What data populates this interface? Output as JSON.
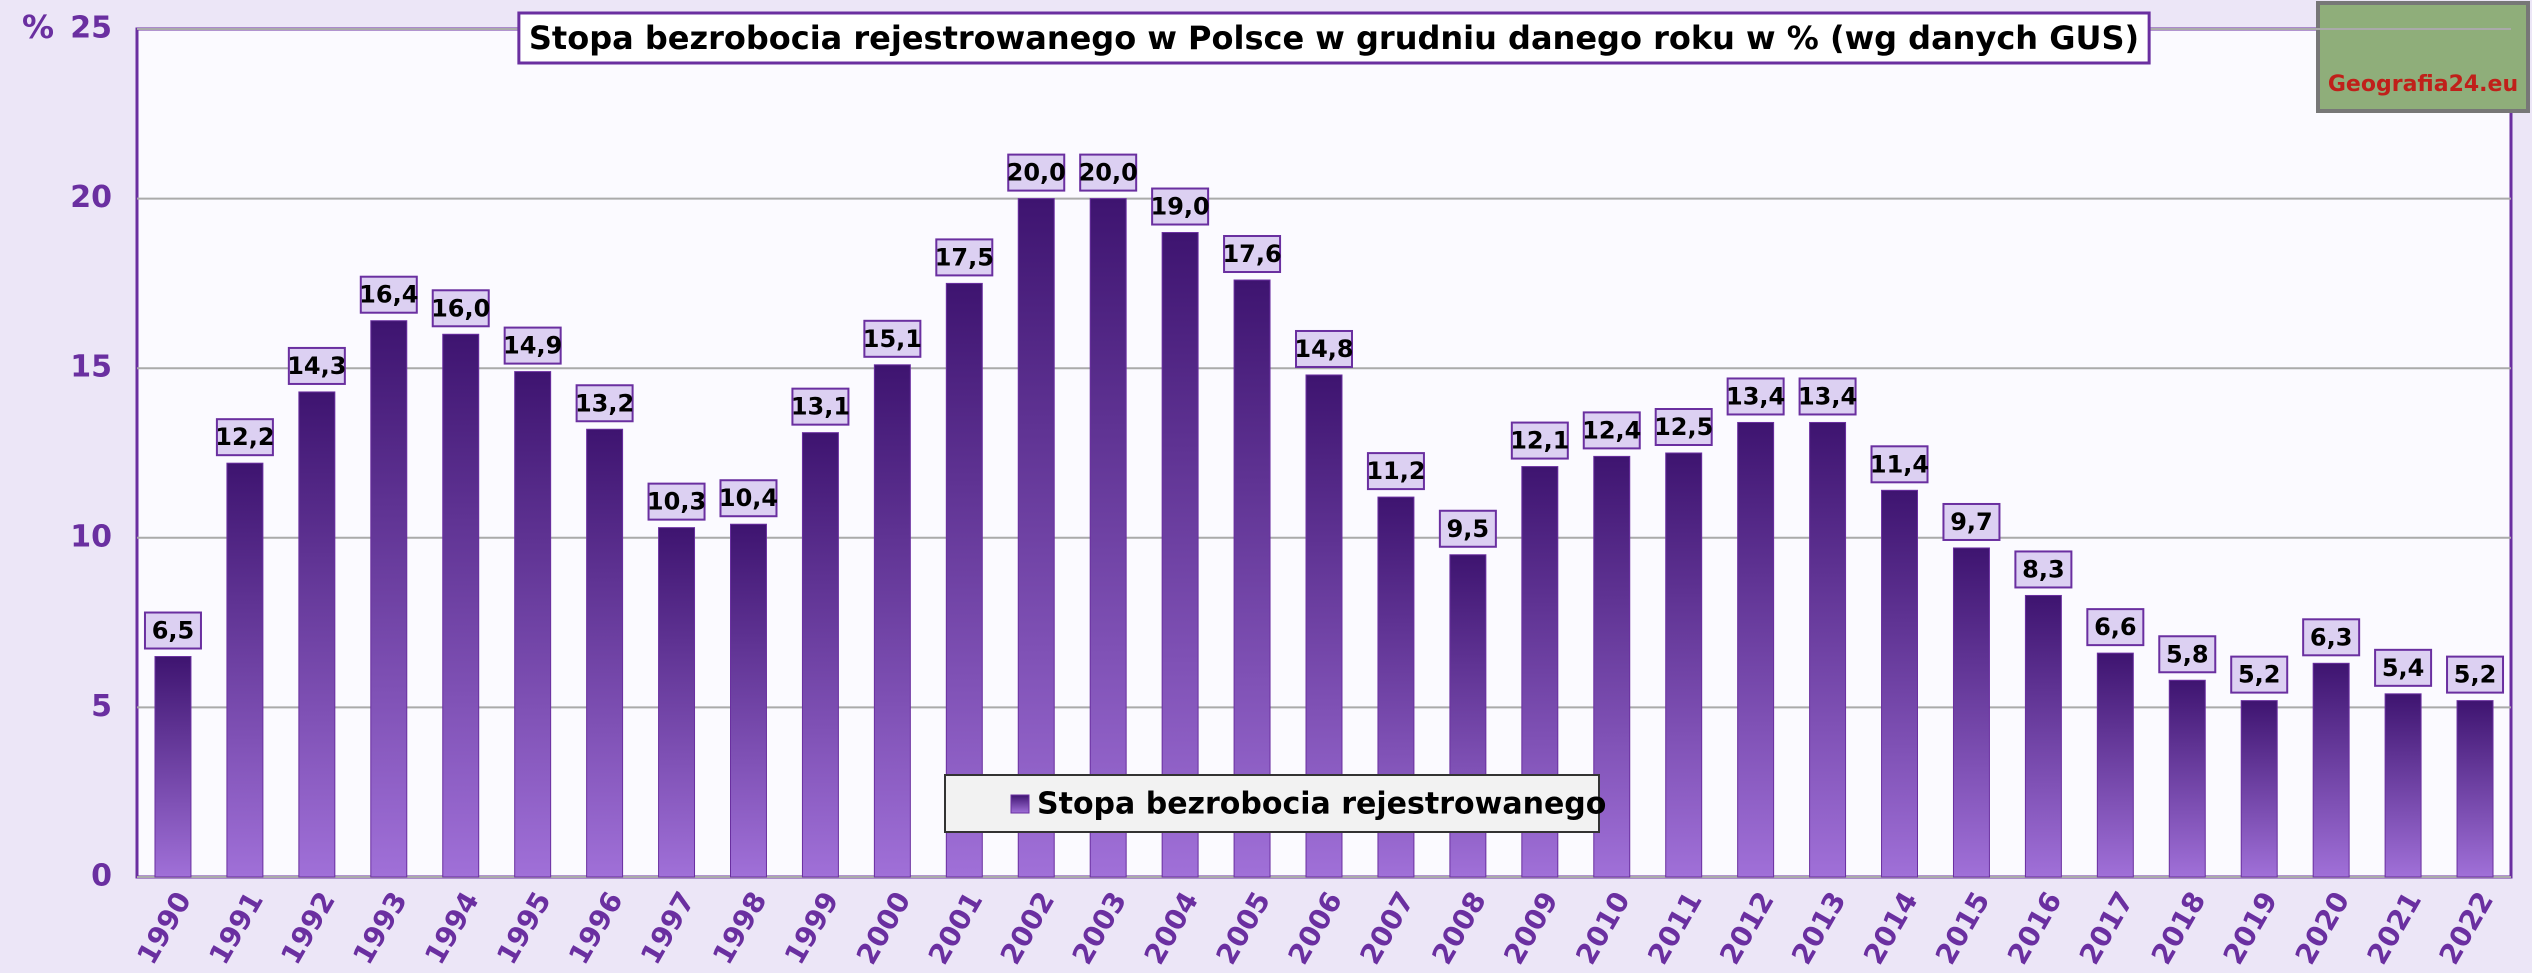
{
  "chart_data": {
    "type": "bar",
    "title": "Stopa bezrobocia rejestrowanego w Polsce w grudniu danego roku w % (wg danych GUS)",
    "y_label": "%",
    "logo_text": "Geografia24.eu",
    "categories": [
      "1990",
      "1991",
      "1992",
      "1993",
      "1994",
      "1995",
      "1996",
      "1997",
      "1998",
      "1999",
      "2000",
      "2001",
      "2002",
      "2003",
      "2004",
      "2005",
      "2006",
      "2007",
      "2008",
      "2009",
      "2010",
      "2011",
      "2012",
      "2013",
      "2014",
      "2015",
      "2016",
      "2017",
      "2018",
      "2019",
      "2020",
      "2021",
      "2022"
    ],
    "series": [
      {
        "name": "Stopa bezrobocia rejestrowanego",
        "color": "#6a2fa0",
        "values": [
          6.5,
          12.2,
          14.3,
          16.4,
          16.0,
          14.9,
          13.2,
          10.3,
          10.4,
          13.1,
          15.1,
          17.5,
          20.0,
          20.0,
          19.0,
          17.6,
          14.8,
          11.2,
          9.5,
          12.1,
          12.4,
          12.5,
          13.4,
          13.4,
          11.4,
          9.7,
          8.3,
          6.6,
          5.8,
          5.2,
          6.3,
          5.4,
          5.2
        ],
        "value_labels": [
          "6,5",
          "12,2",
          "14,3",
          "16,4",
          "16,0",
          "14,9",
          "13,2",
          "10,3",
          "10,4",
          "13,1",
          "15,1",
          "17,5",
          "20,0",
          "20,0",
          "19,0",
          "17,6",
          "14,8",
          "11,2",
          "9,5",
          "12,1",
          "12,4",
          "12,5",
          "13,4",
          "13,4",
          "11,4",
          "9,7",
          "8,3",
          "6,6",
          "5,8",
          "5,2",
          "6,3",
          "5,4",
          "5,2"
        ]
      }
    ],
    "ylim": [
      0,
      25
    ],
    "yticks": [
      0,
      5,
      10,
      15,
      20,
      25
    ],
    "grid": true,
    "legend": "bottom"
  }
}
